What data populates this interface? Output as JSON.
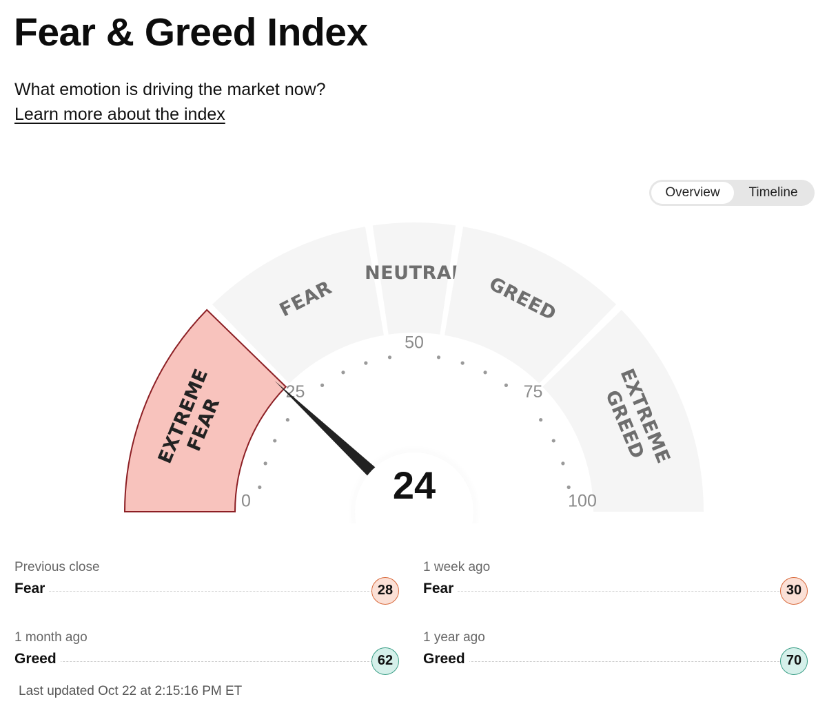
{
  "header": {
    "title": "Fear & Greed Index",
    "subtitle": "What emotion is driving the market now?",
    "learn_more_link": "Learn more about the index"
  },
  "view_toggle": {
    "options": [
      "Overview",
      "Timeline"
    ],
    "selected": "Overview"
  },
  "gauge": {
    "value": 24,
    "value_label": "24",
    "min": 0,
    "max": 100,
    "tick_labels": [
      {
        "value": 0,
        "label": "0"
      },
      {
        "value": 25,
        "label": "25"
      },
      {
        "value": 50,
        "label": "50"
      },
      {
        "value": 75,
        "label": "75"
      },
      {
        "value": 100,
        "label": "100"
      }
    ],
    "zones": [
      {
        "lines": [
          "EXTREME",
          "FEAR"
        ],
        "from": 0,
        "to": 25,
        "active": true
      },
      {
        "lines": [
          "FEAR"
        ],
        "from": 25,
        "to": 45,
        "active": false
      },
      {
        "lines": [
          "NEUTRAL"
        ],
        "from": 45,
        "to": 55,
        "active": false
      },
      {
        "lines": [
          "GREED"
        ],
        "from": 55,
        "to": 75,
        "active": false
      },
      {
        "lines": [
          "EXTREME",
          "GREED"
        ],
        "from": 75,
        "to": 100,
        "active": false
      }
    ],
    "colors": {
      "zone_inactive": "#f5f5f5",
      "zone_active_fill": "#f8c3bd",
      "zone_active_stroke": "#8c1f24",
      "needle": "#222222",
      "dots": "#9a9a9a"
    }
  },
  "history": [
    {
      "period": "Previous close",
      "rating": "Fear",
      "value": "28",
      "tone": "fear"
    },
    {
      "period": "1 week ago",
      "rating": "Fear",
      "value": "30",
      "tone": "fear"
    },
    {
      "period": "1 month ago",
      "rating": "Greed",
      "value": "62",
      "tone": "greed"
    },
    {
      "period": "1 year ago",
      "rating": "Greed",
      "value": "70",
      "tone": "greed"
    }
  ],
  "status_colors": {
    "fear_badge_bg": "#fbe0d6",
    "fear_badge_border": "#d8683a",
    "greed_badge_bg": "#d5f0ea",
    "greed_badge_border": "#3a9e86"
  },
  "last_updated": "Last updated Oct 22 at 2:15:16 PM ET"
}
